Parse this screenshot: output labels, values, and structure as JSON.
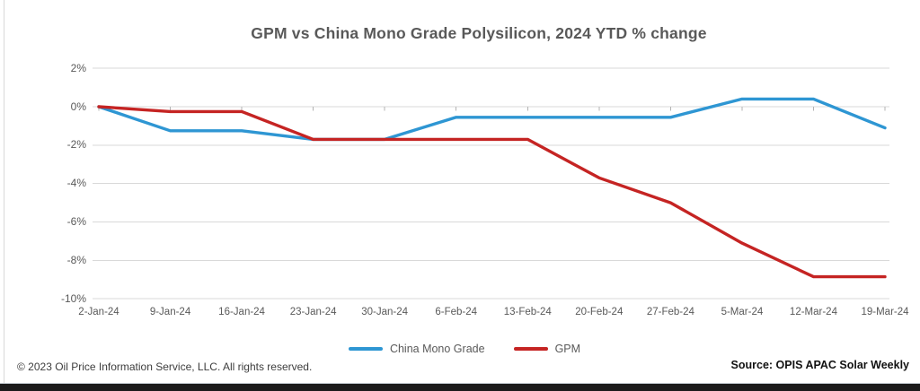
{
  "title": "GPM vs China Mono Grade Polysilicon, 2024 YTD % change",
  "chart_data": {
    "type": "line",
    "title": "GPM vs China Mono Grade Polysilicon, 2024 YTD % change",
    "categories": [
      "2-Jan-24",
      "9-Jan-24",
      "16-Jan-24",
      "23-Jan-24",
      "30-Jan-24",
      "6-Feb-24",
      "13-Feb-24",
      "20-Feb-24",
      "27-Feb-24",
      "5-Mar-24",
      "12-Mar-24",
      "19-Mar-24"
    ],
    "series": [
      {
        "name": "China Mono Grade",
        "color": "#2E96D3",
        "values": [
          0,
          -1.25,
          -1.25,
          -1.7,
          -1.7,
          -0.55,
          -0.55,
          -0.55,
          -0.55,
          0.4,
          0.4,
          -1.1
        ]
      },
      {
        "name": "GPM",
        "color": "#C52423",
        "values": [
          0,
          -0.25,
          -0.25,
          -1.7,
          -1.7,
          -1.7,
          -1.7,
          -3.7,
          -5.0,
          -7.1,
          -8.85,
          -8.85
        ]
      }
    ],
    "y_axis": {
      "ticks": [
        {
          "label": "2%",
          "value": 2
        },
        {
          "label": "0%",
          "value": 0
        },
        {
          "label": "-2%",
          "value": -2
        },
        {
          "label": "-4%",
          "value": -4
        },
        {
          "label": "-6%",
          "value": -6
        },
        {
          "label": "-8%",
          "value": -8
        },
        {
          "label": "-10%",
          "value": -10
        }
      ],
      "min": -10,
      "max": 2
    },
    "grid": true,
    "legend_position": "bottom"
  },
  "footer": {
    "copyright": "© 2023 Oil Price Information Service, LLC. All rights reserved.",
    "source": "Source: OPIS APAC Solar Weekly"
  },
  "colors": {
    "grid": "#d9d9d9",
    "tick": "#b3b3b3",
    "axis_text": "#595959",
    "title_text": "#595959",
    "blue_line": "#2E96D3",
    "red_line": "#C52423",
    "bottom_bar": "#1b1b1b"
  }
}
